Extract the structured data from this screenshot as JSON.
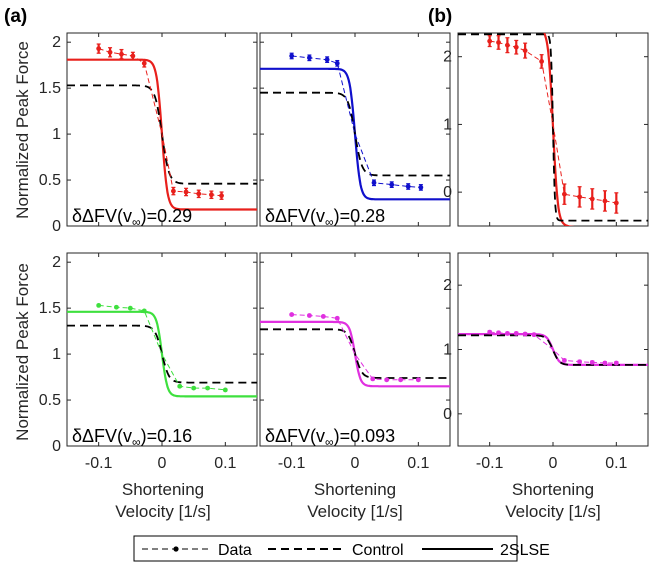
{
  "panel_labels": [
    "(a)",
    "(b)"
  ],
  "ylabel": "Normalized Peak Force",
  "xlabel_line1": "Shortening",
  "xlabel_line2": "Velocity [1/s]",
  "legend": {
    "data": "Data",
    "control": "Control",
    "model": "2SLSE"
  },
  "colors": {
    "red": "#e8201c",
    "blue": "#1010cc",
    "green": "#3ee03e",
    "magenta": "#e030e0",
    "black": "#000000"
  },
  "chart_data": [
    {
      "id": "a-top-left",
      "type": "line",
      "color": "#e8201c",
      "xlim": [
        -0.15,
        0.15
      ],
      "ylim": [
        0,
        2.1
      ],
      "xticks": [
        -0.1,
        0,
        0.1
      ],
      "xticklabels": [
        "-0.1",
        "0",
        "0.1"
      ],
      "yticks": [
        0,
        0.5,
        1,
        1.5,
        2
      ],
      "yticklabels": [
        "0",
        "0.5",
        "1",
        "1.5",
        "2"
      ],
      "annotation_prefix": "δΔFV(v",
      "annotation_sub": "∞",
      "annotation_suffix": ")=0.29",
      "data_points": [
        {
          "x": -0.1,
          "y": 1.93,
          "err": 0.05
        },
        {
          "x": -0.082,
          "y": 1.89,
          "err": 0.05
        },
        {
          "x": -0.064,
          "y": 1.87,
          "err": 0.05
        },
        {
          "x": -0.046,
          "y": 1.85,
          "err": 0.04
        },
        {
          "x": -0.028,
          "y": 1.77,
          "err": 0.04
        },
        {
          "x": 0,
          "y": 1.0,
          "err": 0
        },
        {
          "x": 0.018,
          "y": 0.38,
          "err": 0.04
        },
        {
          "x": 0.038,
          "y": 0.37,
          "err": 0.04
        },
        {
          "x": 0.058,
          "y": 0.35,
          "err": 0.04
        },
        {
          "x": 0.078,
          "y": 0.34,
          "err": 0.04
        },
        {
          "x": 0.094,
          "y": 0.33,
          "err": 0.04
        }
      ],
      "control": {
        "left": 1.53,
        "right": 0.46,
        "steep": 0.011
      },
      "model": {
        "left": 1.81,
        "right": 0.18,
        "steep": 0.0085
      }
    },
    {
      "id": "a-top-right",
      "type": "line",
      "color": "#1010cc",
      "xlim": [
        -0.15,
        0.15
      ],
      "ylim": [
        0,
        2.1
      ],
      "xticks": [
        -0.1,
        0,
        0.1
      ],
      "xticklabels": [
        "-0.1",
        "0",
        "0.1"
      ],
      "yticks": [
        0,
        0.5,
        1,
        1.5,
        2
      ],
      "yticklabels": [
        "",
        "",
        "",
        "",
        ""
      ],
      "annotation_prefix": "δΔFV(v",
      "annotation_sub": "∞",
      "annotation_suffix": ")=0.28",
      "data_points": [
        {
          "x": -0.1,
          "y": 1.85,
          "err": 0.03
        },
        {
          "x": -0.072,
          "y": 1.83,
          "err": 0.03
        },
        {
          "x": -0.044,
          "y": 1.81,
          "err": 0.03
        },
        {
          "x": -0.028,
          "y": 1.77,
          "err": 0.03
        },
        {
          "x": 0,
          "y": 1.0,
          "err": 0
        },
        {
          "x": 0.03,
          "y": 0.47,
          "err": 0.03
        },
        {
          "x": 0.058,
          "y": 0.45,
          "err": 0.03
        },
        {
          "x": 0.084,
          "y": 0.43,
          "err": 0.03
        },
        {
          "x": 0.104,
          "y": 0.42,
          "err": 0.03
        }
      ],
      "control": {
        "left": 1.45,
        "right": 0.55,
        "steep": 0.011
      },
      "model": {
        "left": 1.71,
        "right": 0.29,
        "steep": 0.0085
      }
    },
    {
      "id": "a-bottom-left",
      "type": "line",
      "color": "#3ee03e",
      "xlim": [
        -0.15,
        0.15
      ],
      "ylim": [
        0,
        2.1
      ],
      "xticks": [
        -0.1,
        0,
        0.1
      ],
      "xticklabels": [
        "-0.1",
        "0",
        "0.1"
      ],
      "yticks": [
        0,
        0.5,
        1,
        1.5,
        2
      ],
      "yticklabels": [
        "0",
        "0.5",
        "1",
        "1.5",
        "2"
      ],
      "annotation_prefix": "δΔFV(v",
      "annotation_sub": "∞",
      "annotation_suffix": ")=0.16",
      "data_points": [
        {
          "x": -0.1,
          "y": 1.53,
          "err": 0.01
        },
        {
          "x": -0.072,
          "y": 1.51,
          "err": 0.01
        },
        {
          "x": -0.05,
          "y": 1.5,
          "err": 0.01
        },
        {
          "x": -0.028,
          "y": 1.47,
          "err": 0.01
        },
        {
          "x": 0,
          "y": 1.0,
          "err": 0
        },
        {
          "x": 0.028,
          "y": 0.65,
          "err": 0.01
        },
        {
          "x": 0.05,
          "y": 0.63,
          "err": 0.01
        },
        {
          "x": 0.072,
          "y": 0.63,
          "err": 0.01
        },
        {
          "x": 0.1,
          "y": 0.61,
          "err": 0.01
        }
      ],
      "control": {
        "left": 1.31,
        "right": 0.69,
        "steep": 0.011
      },
      "model": {
        "left": 1.46,
        "right": 0.54,
        "steep": 0.0085
      }
    },
    {
      "id": "a-bottom-right",
      "type": "line",
      "color": "#e030e0",
      "xlim": [
        -0.15,
        0.15
      ],
      "ylim": [
        0,
        2.1
      ],
      "xticks": [
        -0.1,
        0,
        0.1
      ],
      "xticklabels": [
        "-0.1",
        "0",
        "0.1"
      ],
      "yticks": [
        0,
        0.5,
        1,
        1.5,
        2
      ],
      "yticklabels": [
        "",
        "",
        "",
        "",
        ""
      ],
      "annotation_prefix": "δΔFV(v",
      "annotation_sub": "∞",
      "annotation_suffix": ")=0.093",
      "data_points": [
        {
          "x": -0.1,
          "y": 1.43,
          "err": 0.01
        },
        {
          "x": -0.072,
          "y": 1.42,
          "err": 0.01
        },
        {
          "x": -0.05,
          "y": 1.41,
          "err": 0.01
        },
        {
          "x": -0.028,
          "y": 1.39,
          "err": 0.01
        },
        {
          "x": 0,
          "y": 1.0,
          "err": 0
        },
        {
          "x": 0.028,
          "y": 0.73,
          "err": 0.01
        },
        {
          "x": 0.05,
          "y": 0.72,
          "err": 0.01
        },
        {
          "x": 0.072,
          "y": 0.72,
          "err": 0.01
        },
        {
          "x": 0.1,
          "y": 0.72,
          "err": 0.01
        }
      ],
      "control": {
        "left": 1.27,
        "right": 0.74,
        "steep": 0.011
      },
      "model": {
        "left": 1.35,
        "right": 0.65,
        "steep": 0.0085
      }
    },
    {
      "id": "b-top",
      "type": "line",
      "color": "#e8201c",
      "xlim": [
        -0.15,
        0.15
      ],
      "ylim": [
        -0.5,
        2.35
      ],
      "xticks": [
        -0.1,
        0,
        0.1
      ],
      "xticklabels": [
        "-0.1",
        "0",
        "0.1"
      ],
      "yticks": [
        0,
        1,
        2
      ],
      "yticklabels": [
        "0",
        "1",
        "2"
      ],
      "data_points": [
        {
          "x": -0.1,
          "y": 2.23,
          "err": 0.08
        },
        {
          "x": -0.086,
          "y": 2.21,
          "err": 0.1
        },
        {
          "x": -0.072,
          "y": 2.17,
          "err": 0.11
        },
        {
          "x": -0.058,
          "y": 2.14,
          "err": 0.1
        },
        {
          "x": -0.044,
          "y": 2.09,
          "err": 0.11
        },
        {
          "x": -0.018,
          "y": 1.93,
          "err": 0.1
        },
        {
          "x": 0,
          "y": 1.0,
          "err": 0
        },
        {
          "x": 0.018,
          "y": -0.03,
          "err": 0.15
        },
        {
          "x": 0.042,
          "y": -0.07,
          "err": 0.15
        },
        {
          "x": 0.062,
          "y": -0.1,
          "err": 0.15
        },
        {
          "x": 0.082,
          "y": -0.13,
          "err": 0.15
        },
        {
          "x": 0.1,
          "y": -0.16,
          "err": 0.15
        }
      ],
      "control": {
        "left": 2.33,
        "right": -0.42,
        "steep": 0.003
      },
      "model": {
        "left": 2.4,
        "right": -0.48,
        "steep": 0.0075,
        "tilt": -1.1
      }
    },
    {
      "id": "b-bottom",
      "type": "line",
      "color": "#e030e0",
      "xlim": [
        -0.15,
        0.15
      ],
      "ylim": [
        -0.5,
        2.5
      ],
      "xticks": [
        -0.1,
        0,
        0.1
      ],
      "xticklabels": [
        "-0.1",
        "0",
        "0.1"
      ],
      "yticks": [
        0,
        1,
        2
      ],
      "yticklabels": [
        "0",
        "1",
        "2"
      ],
      "data_points": [
        {
          "x": -0.1,
          "y": 1.27,
          "err": 0.02
        },
        {
          "x": -0.086,
          "y": 1.26,
          "err": 0.02
        },
        {
          "x": -0.072,
          "y": 1.25,
          "err": 0.02
        },
        {
          "x": -0.058,
          "y": 1.25,
          "err": 0.02
        },
        {
          "x": -0.044,
          "y": 1.24,
          "err": 0.02
        },
        {
          "x": -0.03,
          "y": 1.23,
          "err": 0.02
        },
        {
          "x": 0,
          "y": 1.0,
          "err": 0
        },
        {
          "x": 0.018,
          "y": 0.83,
          "err": 0.02
        },
        {
          "x": 0.042,
          "y": 0.81,
          "err": 0.02
        },
        {
          "x": 0.062,
          "y": 0.8,
          "err": 0.02
        },
        {
          "x": 0.082,
          "y": 0.79,
          "err": 0.02
        },
        {
          "x": 0.1,
          "y": 0.79,
          "err": 0.02
        }
      ],
      "control": {
        "left": 1.22,
        "right": 0.76,
        "steep": 0.01
      },
      "model": {
        "left": 1.24,
        "right": 0.76,
        "steep": 0.01
      }
    }
  ]
}
